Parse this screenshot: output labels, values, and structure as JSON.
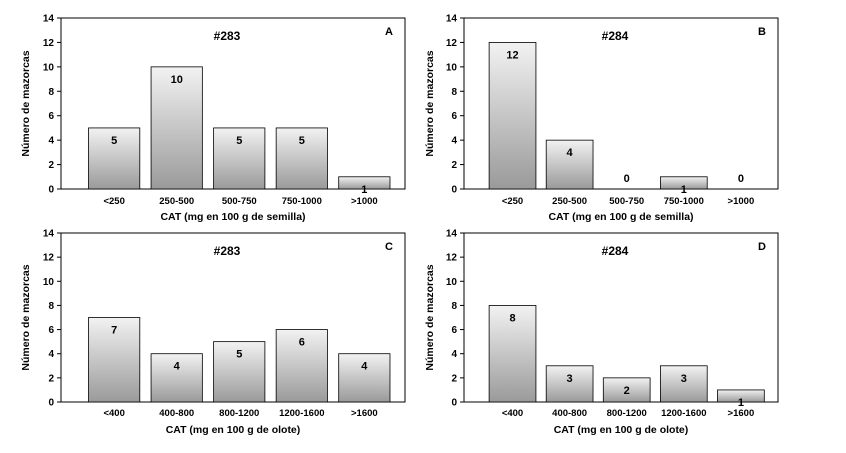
{
  "chart_data": [
    {
      "panel": "A",
      "type": "bar",
      "title": "#283",
      "xlabel": "CAT (mg en 100 g de semilla)",
      "ylabel": "Número de mazorcas",
      "ylim": [
        0,
        14
      ],
      "yticks": [
        0,
        2,
        4,
        6,
        8,
        10,
        12,
        14
      ],
      "categories": [
        "<250",
        "250-500",
        "500-750",
        "750-1000",
        ">1000"
      ],
      "values": [
        5,
        10,
        5,
        5,
        1
      ],
      "data_labels": [
        "5",
        "10",
        "5",
        "5",
        "1"
      ],
      "grid": false,
      "bar_fill": [
        "#f2f2f2",
        "#9a9a9a"
      ]
    },
    {
      "panel": "B",
      "type": "bar",
      "title": "#284",
      "xlabel": "CAT (mg en 100 g de semilla)",
      "ylabel": "Número de mazorcas",
      "ylim": [
        0,
        14
      ],
      "yticks": [
        0,
        2,
        4,
        6,
        8,
        10,
        12,
        14
      ],
      "categories": [
        "<250",
        "250-500",
        "500-750",
        "750-1000",
        ">1000"
      ],
      "values": [
        12,
        4,
        0,
        1,
        0
      ],
      "data_labels": [
        "12",
        "4",
        "0",
        "1",
        "0"
      ],
      "grid": false,
      "bar_fill": [
        "#f2f2f2",
        "#9a9a9a"
      ]
    },
    {
      "panel": "C",
      "type": "bar",
      "title": "#283",
      "xlabel": "CAT (mg en 100 g de olote)",
      "ylabel": "Número de mazorcas",
      "ylim": [
        0,
        14
      ],
      "yticks": [
        0,
        2,
        4,
        6,
        8,
        10,
        12,
        14
      ],
      "categories": [
        "<400",
        "400-800",
        "800-1200",
        "1200-1600",
        ">1600"
      ],
      "values": [
        7,
        4,
        5,
        6,
        4
      ],
      "data_labels": [
        "7",
        "4",
        "5",
        "6",
        "4"
      ],
      "grid": false,
      "bar_fill": [
        "#f2f2f2",
        "#9a9a9a"
      ]
    },
    {
      "panel": "D",
      "type": "bar",
      "title": "#284",
      "xlabel": "CAT (mg en 100 g de olote)",
      "ylabel": "Número de mazorcas",
      "ylim": [
        0,
        14
      ],
      "yticks": [
        0,
        2,
        4,
        6,
        8,
        10,
        12,
        14
      ],
      "categories": [
        "<400",
        "400-800",
        "800-1200",
        "1200-1600",
        ">1600"
      ],
      "values": [
        8,
        3,
        2,
        3,
        1
      ],
      "data_labels": [
        "8",
        "3",
        "2",
        "3",
        "1"
      ],
      "grid": false,
      "bar_fill": [
        "#f2f2f2",
        "#9a9a9a"
      ]
    }
  ]
}
